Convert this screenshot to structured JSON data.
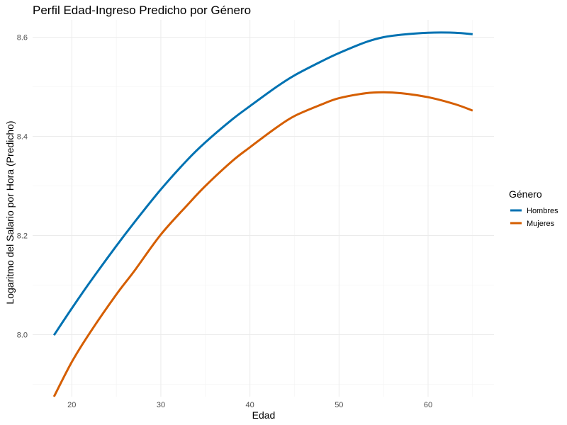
{
  "chart_data": {
    "type": "line",
    "title": "Perfil Edad-Ingreso Predicho por Género",
    "xlabel": "Edad",
    "ylabel": "Logaritmo del Salario por Hora (Predicho)",
    "xlim": [
      15.6,
      67.4
    ],
    "ylim": [
      7.875,
      8.635
    ],
    "x_ticks": [
      20,
      30,
      40,
      50,
      60
    ],
    "y_ticks": [
      8.0,
      8.2,
      8.4,
      8.6
    ],
    "x_tick_labels": [
      "20",
      "30",
      "40",
      "50",
      "60"
    ],
    "y_tick_labels": [
      "8.0",
      "8.2",
      "8.4",
      "8.6"
    ],
    "grid": true,
    "legend": {
      "title": "Género",
      "position": "right"
    },
    "x": [
      18,
      20,
      22,
      25,
      27,
      30,
      33,
      35,
      38,
      40,
      43,
      45,
      48,
      50,
      53,
      55,
      57,
      60,
      63,
      65
    ],
    "series": [
      {
        "name": "Hombres",
        "color": "#0072B2",
        "values": [
          7.999,
          8.053,
          8.105,
          8.179,
          8.226,
          8.293,
          8.353,
          8.388,
          8.434,
          8.461,
          8.5,
          8.523,
          8.551,
          8.568,
          8.59,
          8.6,
          8.605,
          8.609,
          8.609,
          8.606
        ]
      },
      {
        "name": "Mujeres",
        "color": "#D55E00",
        "values": [
          7.875,
          7.945,
          8.003,
          8.081,
          8.128,
          8.202,
          8.262,
          8.3,
          8.35,
          8.378,
          8.418,
          8.441,
          8.464,
          8.477,
          8.487,
          8.489,
          8.487,
          8.479,
          8.465,
          8.452
        ]
      }
    ]
  }
}
